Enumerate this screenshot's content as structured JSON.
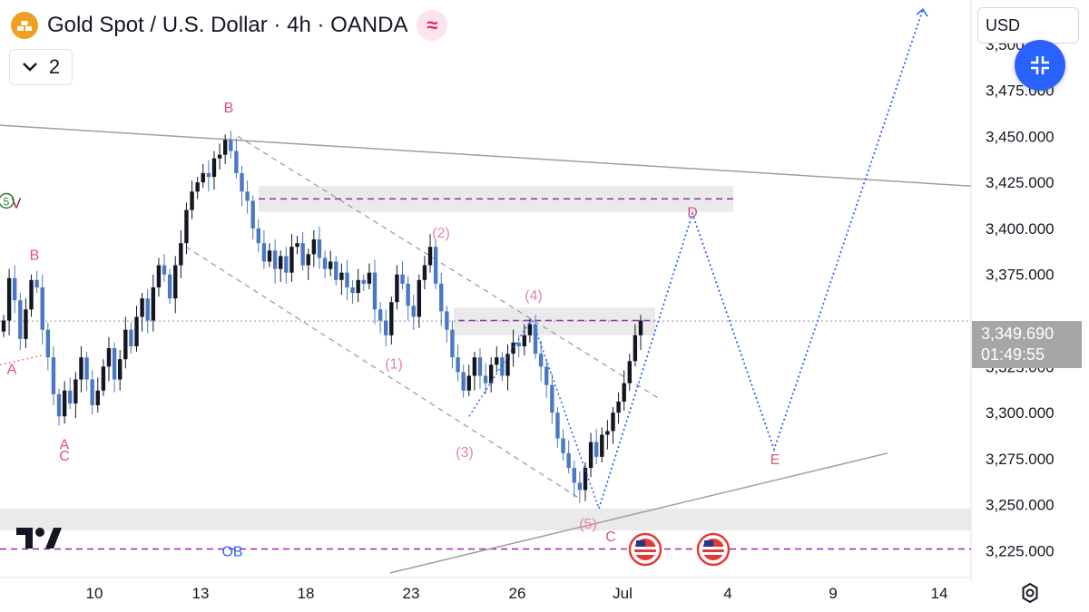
{
  "header": {
    "title": "Gold Spot / U.S. Dollar · 4h · OANDA",
    "collapse_count": "2",
    "currency": "USD"
  },
  "price_tag": {
    "price": "3,349.690",
    "countdown": "01:49:55"
  },
  "colors": {
    "bull": "#131722",
    "bear": "#4a78c4",
    "label_pink": "#e0507a",
    "projection": "#2962ff",
    "zone": "#e6e6e6",
    "dashed_purple": "#9c27b0"
  },
  "icons": {
    "symbol": "gold-bars-icon",
    "indicator": "wave-icon",
    "collapse": "chevron-down-icon",
    "fab": "compress-arrows-icon",
    "logo": "tradingview-logo-icon",
    "settings": "gear-icon"
  },
  "chart_data": {
    "type": "candlestick",
    "title": "Gold Spot / U.S. Dollar · 4h · OANDA",
    "y_axis": {
      "range": [
        3209,
        3524
      ],
      "position": "right",
      "ticks": [
        "3,225.000",
        "3,250.000",
        "3,275.000",
        "3,300.000",
        "3,325.000",
        "3,350.000",
        "3,375.000",
        "3,400.000",
        "3,425.000",
        "3,450.000",
        "3,475.000",
        "3,500.000"
      ]
    },
    "x_axis": {
      "ticks": [
        "10",
        "13",
        "18",
        "23",
        "26",
        "Jul",
        "4",
        "9",
        "14"
      ]
    },
    "last_price": 3349.69,
    "candles_close_path": [
      3350,
      3373,
      3361,
      3340,
      3356,
      3372,
      3368,
      3345,
      3330,
      3310,
      3298,
      3312,
      3305,
      3318,
      3330,
      3318,
      3304,
      3312,
      3325,
      3335,
      3318,
      3329,
      3345,
      3336,
      3352,
      3362,
      3350,
      3368,
      3380,
      3375,
      3362,
      3380,
      3392,
      3410,
      3420,
      3425,
      3430,
      3428,
      3438,
      3440,
      3448,
      3442,
      3430,
      3420,
      3415,
      3400,
      3392,
      3382,
      3388,
      3378,
      3385,
      3376,
      3390,
      3392,
      3380,
      3386,
      3394,
      3384,
      3378,
      3382,
      3372,
      3376,
      3368,
      3365,
      3372,
      3370,
      3376,
      3356,
      3350,
      3342,
      3360,
      3375,
      3370,
      3358,
      3352,
      3372,
      3380,
      3390,
      3370,
      3355,
      3345,
      3330,
      3322,
      3312,
      3320,
      3330,
      3320,
      3316,
      3326,
      3330,
      3320,
      3332,
      3338,
      3336,
      3342,
      3348,
      3332,
      3325,
      3315,
      3300,
      3286,
      3278,
      3270,
      3262,
      3258,
      3270,
      3284,
      3276,
      3288,
      3290,
      3300,
      3306,
      3316,
      3328,
      3342,
      3350
    ],
    "annotations": {
      "wave_labels": [
        {
          "text": "B",
          "price": 3466
        },
        {
          "text": "B",
          "price": 3386
        },
        {
          "text": "A",
          "price": 3324
        },
        {
          "text": "A",
          "price": 3283
        },
        {
          "text": "C",
          "price": 3277
        },
        {
          "text": "V",
          "price": 3414
        },
        {
          "text": "(1)",
          "price": 3327
        },
        {
          "text": "(2)",
          "price": 3398
        },
        {
          "text": "(3)",
          "price": 3279
        },
        {
          "text": "(4)",
          "price": 3364
        },
        {
          "text": "(5)",
          "price": 3240
        },
        {
          "text": "C",
          "price": 3233
        },
        {
          "text": "D",
          "price": 3409
        },
        {
          "text": "E",
          "price": 3275
        },
        {
          "text": "OB",
          "price": 3225
        }
      ],
      "zones": [
        {
          "from": 3409,
          "to": 3423
        },
        {
          "from": 3342,
          "to": 3357
        },
        {
          "from": 3236,
          "to": 3248
        }
      ],
      "dashed_levels": [
        3416,
        3350,
        3226
      ],
      "projection_path": [
        3248,
        3408,
        3280,
        3519
      ]
    }
  }
}
